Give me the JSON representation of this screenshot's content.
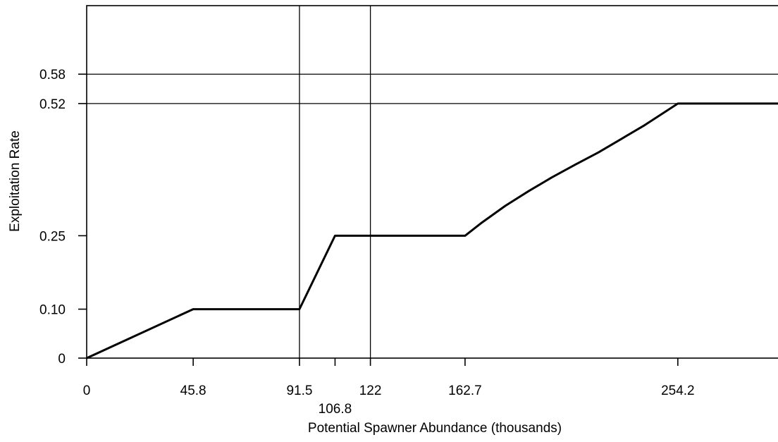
{
  "chart_data": {
    "type": "line",
    "title": "",
    "xlabel": "Potential Spawner Abundance (thousands)",
    "ylabel": "Exploitation Rate",
    "xlim": [
      0,
      300
    ],
    "ylim": [
      0,
      0.72
    ],
    "x_ticks": [
      {
        "value": 0,
        "label": "0"
      },
      {
        "value": 45.8,
        "label": "45.8"
      },
      {
        "value": 91.5,
        "label": "91.5"
      },
      {
        "value": 106.8,
        "label": "106.8",
        "offset_row": true
      },
      {
        "value": 122,
        "label": "122"
      },
      {
        "value": 162.7,
        "label": "162.7"
      },
      {
        "value": 254.2,
        "label": "254.2"
      }
    ],
    "y_ticks": [
      {
        "value": 0,
        "label": "0"
      },
      {
        "value": 0.1,
        "label": "0.10"
      },
      {
        "value": 0.25,
        "label": "0.25"
      },
      {
        "value": 0.52,
        "label": "0.52"
      },
      {
        "value": 0.58,
        "label": "0.58"
      }
    ],
    "reference_lines": {
      "vertical": [
        91.5,
        122
      ],
      "horizontal": [
        0.52,
        0.58
      ]
    },
    "series": [
      {
        "x": [
          0,
          45.8,
          91.5,
          106.8,
          162.7,
          170,
          180,
          190,
          200,
          210,
          220,
          230,
          240,
          254.2,
          300
        ],
        "y": [
          0,
          0.1,
          0.1,
          0.25,
          0.25,
          0.277,
          0.311,
          0.341,
          0.369,
          0.395,
          0.42,
          0.448,
          0.476,
          0.52,
          0.52
        ]
      }
    ],
    "grid": false,
    "legend": "none"
  }
}
